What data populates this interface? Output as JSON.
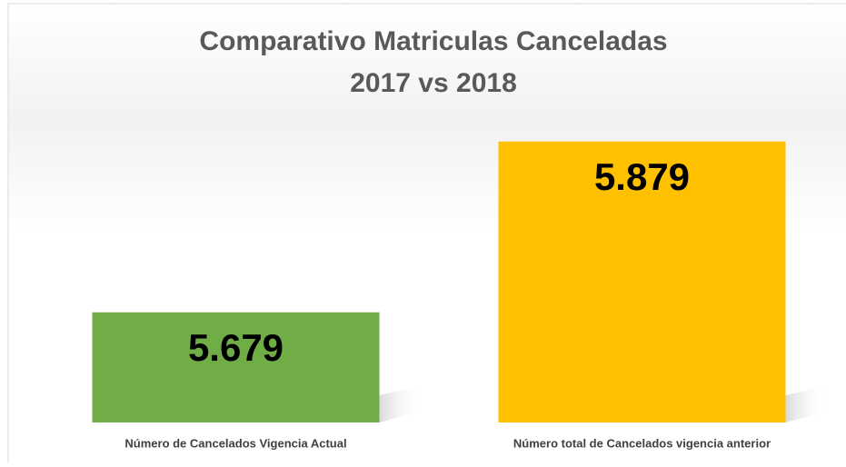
{
  "chart_data": {
    "type": "bar",
    "title": "Comparativo Matriculas Canceladas",
    "subtitle": "2017 vs 2018",
    "categories": [
      "Número de Cancelados Vigencia Actual",
      "Número total de Cancelados vigencia anterior"
    ],
    "values": [
      5679,
      5879
    ],
    "value_labels": [
      "5.679",
      "5.879"
    ],
    "colors": [
      "#70ad47",
      "#ffc000"
    ],
    "ylim": [
      5550,
      5900
    ]
  }
}
